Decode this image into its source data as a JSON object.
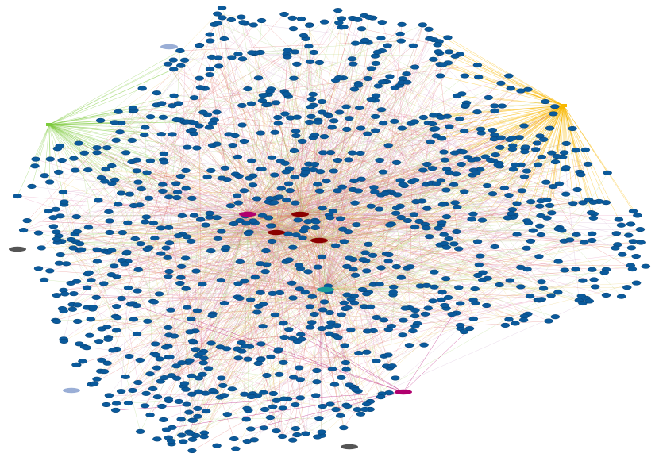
{
  "graph": {
    "node_color": "#0a5a9c",
    "node_stroke": "#073f6e",
    "edge_colors": [
      "#e27aa8",
      "#e8c65a",
      "#9fcf6a",
      "#d9534f",
      "#c9a0c8"
    ],
    "hub_colors": [
      "#b0006e",
      "#8a0000",
      "#1a9a9a",
      "#555555",
      "#9aaed6",
      "#b0006e"
    ],
    "left_fan_color": "#7dcb3c",
    "right_fan_color": "#f8b800"
  }
}
